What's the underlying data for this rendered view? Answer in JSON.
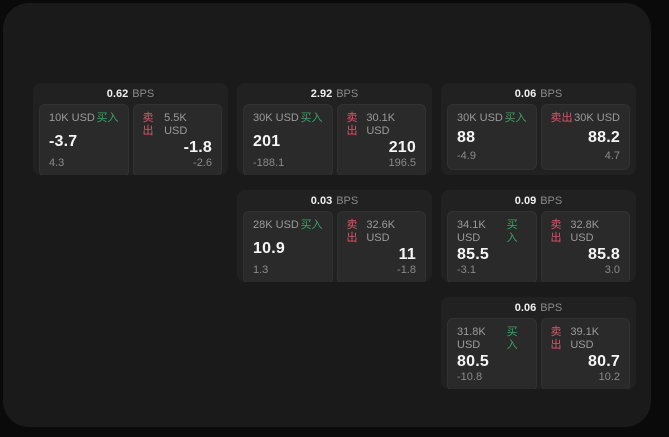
{
  "colors": {
    "buy_green": "#3fa06a",
    "sell_red": "#d8566b",
    "window_bg": "#1a1a1a",
    "card_bg": "#212121",
    "panel_bg": "#2a2a2a"
  },
  "labels": {
    "bps_unit": "BPS",
    "buy": "买入",
    "sell": "卖出"
  },
  "cards": [
    {
      "bps_value": "0.62",
      "bps_unit": "BPS",
      "buy": {
        "amount": "10K USD",
        "side_label": "买入",
        "value": "-3.7",
        "delta": "4.3"
      },
      "sell": {
        "side_label": "卖出",
        "amount": "5.5K USD",
        "value": "-1.8",
        "delta": "-2.6"
      }
    },
    {
      "bps_value": "2.92",
      "bps_unit": "BPS",
      "buy": {
        "amount": "30K USD",
        "side_label": "买入",
        "value": "201",
        "delta": "-188.1"
      },
      "sell": {
        "side_label": "卖出",
        "amount": "30.1K USD",
        "value": "210",
        "delta": "196.5"
      }
    },
    {
      "bps_value": "0.06",
      "bps_unit": "BPS",
      "buy": {
        "amount": "30K USD",
        "side_label": "买入",
        "value": "88",
        "delta": "-4.9"
      },
      "sell": {
        "side_label": "卖出",
        "amount": "30K USD",
        "value": "88.2",
        "delta": "4.7"
      }
    },
    {
      "bps_value": "0.03",
      "bps_unit": "BPS",
      "buy": {
        "amount": "28K USD",
        "side_label": "买入",
        "value": "10.9",
        "delta": "1.3"
      },
      "sell": {
        "side_label": "卖出",
        "amount": "32.6K USD",
        "value": "11",
        "delta": "-1.8"
      }
    },
    {
      "bps_value": "0.09",
      "bps_unit": "BPS",
      "buy": {
        "amount": "34.1K USD",
        "side_label": "买入",
        "value": "85.5",
        "delta": "-3.1"
      },
      "sell": {
        "side_label": "卖出",
        "amount": "32.8K USD",
        "value": "85.8",
        "delta": "3.0"
      }
    },
    {
      "bps_value": "0.06",
      "bps_unit": "BPS",
      "buy": {
        "amount": "31.8K USD",
        "side_label": "买入",
        "value": "80.5",
        "delta": "-10.8"
      },
      "sell": {
        "side_label": "卖出",
        "amount": "39.1K USD",
        "value": "80.7",
        "delta": "10.2"
      }
    }
  ]
}
